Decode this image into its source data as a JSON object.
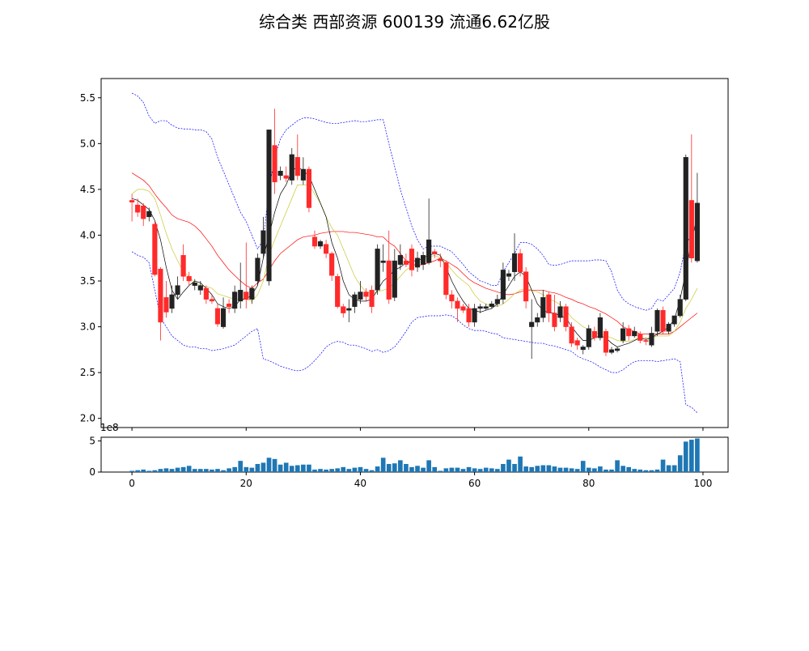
{
  "chart_data": {
    "type": "candlestick",
    "title": "综合类 西部资源 600139 流通6.62亿股",
    "up_color": "#222222",
    "down_color": "#ff2a2a",
    "x": [
      0,
      1,
      2,
      3,
      4,
      5,
      6,
      7,
      8,
      9,
      10,
      11,
      12,
      13,
      14,
      15,
      16,
      17,
      18,
      19,
      20,
      21,
      22,
      23,
      24,
      25,
      26,
      27,
      28,
      29,
      30,
      31,
      32,
      33,
      34,
      35,
      36,
      37,
      38,
      39,
      40,
      41,
      42,
      43,
      44,
      45,
      46,
      47,
      48,
      49,
      50,
      51,
      52,
      53,
      54,
      55,
      56,
      57,
      58,
      59,
      60,
      61,
      62,
      63,
      64,
      65,
      66,
      67,
      68,
      69,
      70,
      71,
      72,
      73,
      74,
      75,
      76,
      77,
      78,
      79,
      80,
      81,
      82,
      83,
      84,
      85,
      86,
      87,
      88,
      89,
      90,
      91,
      92,
      93,
      94,
      95,
      96,
      97,
      98,
      99
    ],
    "open": [
      4.38,
      4.33,
      4.32,
      4.2,
      4.12,
      3.63,
      3.32,
      3.2,
      3.35,
      3.78,
      3.55,
      3.45,
      3.4,
      3.42,
      3.3,
      3.2,
      3.0,
      3.25,
      3.2,
      3.28,
      3.38,
      3.3,
      3.5,
      3.8,
      3.5,
      4.98,
      4.65,
      4.65,
      4.6,
      4.85,
      4.6,
      4.72,
      3.98,
      3.88,
      3.9,
      3.8,
      3.55,
      3.22,
      3.18,
      3.22,
      3.3,
      3.38,
      3.4,
      3.4,
      3.7,
      3.72,
      3.32,
      3.68,
      3.72,
      3.85,
      3.65,
      3.68,
      3.7,
      3.82,
      3.74,
      3.7,
      3.35,
      3.28,
      3.22,
      3.2,
      3.05,
      3.2,
      3.2,
      3.22,
      3.25,
      3.3,
      3.55,
      3.6,
      3.8,
      3.6,
      3.0,
      3.05,
      3.1,
      3.35,
      3.15,
      3.1,
      3.22,
      3.0,
      2.85,
      2.75,
      2.78,
      2.95,
      2.88,
      2.95,
      2.72,
      2.74,
      2.85,
      2.98,
      2.9,
      2.92,
      2.85,
      2.8,
      2.95,
      3.18,
      2.95,
      3.03,
      3.12,
      3.3,
      4.38,
      3.72
    ],
    "high": [
      4.45,
      4.4,
      4.35,
      4.3,
      4.15,
      3.65,
      3.5,
      3.45,
      3.55,
      3.9,
      3.6,
      3.52,
      3.5,
      3.45,
      3.35,
      3.25,
      3.32,
      3.3,
      3.45,
      3.7,
      3.92,
      3.45,
      3.8,
      4.2,
      5.15,
      5.38,
      4.75,
      4.75,
      4.95,
      5.1,
      4.85,
      4.75,
      4.05,
      3.95,
      3.95,
      3.82,
      3.58,
      3.25,
      3.3,
      3.38,
      3.5,
      3.42,
      3.45,
      3.9,
      3.9,
      4.05,
      3.85,
      3.9,
      3.8,
      3.9,
      3.82,
      3.82,
      4.4,
      3.85,
      3.8,
      3.72,
      3.4,
      3.32,
      3.25,
      3.25,
      3.25,
      3.25,
      3.25,
      3.28,
      3.35,
      3.7,
      3.62,
      4.02,
      3.85,
      3.65,
      3.3,
      3.15,
      3.4,
      3.38,
      3.35,
      3.28,
      3.25,
      3.05,
      2.88,
      2.8,
      3.02,
      3.0,
      3.15,
      2.98,
      2.78,
      2.78,
      3.05,
      3.02,
      3.0,
      2.95,
      2.88,
      3.0,
      3.2,
      3.22,
      3.05,
      3.12,
      3.35,
      4.88,
      5.1,
      4.68
    ],
    "low": [
      4.15,
      4.2,
      4.1,
      4.15,
      3.55,
      2.85,
      3.1,
      3.15,
      3.3,
      3.5,
      3.45,
      3.4,
      3.35,
      3.25,
      3.25,
      3.0,
      2.98,
      3.15,
      3.15,
      3.2,
      3.2,
      3.25,
      3.45,
      3.75,
      3.45,
      4.45,
      4.6,
      4.58,
      4.55,
      4.6,
      4.55,
      4.25,
      3.85,
      3.85,
      3.75,
      3.5,
      3.2,
      3.1,
      3.05,
      3.15,
      3.25,
      3.28,
      3.15,
      3.35,
      3.6,
      3.25,
      3.28,
      3.62,
      3.65,
      3.55,
      3.6,
      3.62,
      3.68,
      3.75,
      3.65,
      3.3,
      3.2,
      3.05,
      3.15,
      3.0,
      3.0,
      3.15,
      3.18,
      3.2,
      3.22,
      3.25,
      3.5,
      3.5,
      3.55,
      3.2,
      2.65,
      3.0,
      3.05,
      3.05,
      2.95,
      3.05,
      2.95,
      2.78,
      2.75,
      2.7,
      2.75,
      2.85,
      2.85,
      2.68,
      2.7,
      2.72,
      2.82,
      2.85,
      2.88,
      2.82,
      2.8,
      2.78,
      2.9,
      2.92,
      2.92,
      3.0,
      3.1,
      3.28,
      3.7,
      3.7
    ],
    "close": [
      4.36,
      4.25,
      4.18,
      4.26,
      3.57,
      3.05,
      3.16,
      3.35,
      3.45,
      3.55,
      3.5,
      3.48,
      3.45,
      3.3,
      3.28,
      3.03,
      3.2,
      3.22,
      3.38,
      3.4,
      3.3,
      3.42,
      3.75,
      4.05,
      5.15,
      4.58,
      4.7,
      4.62,
      4.88,
      4.65,
      4.72,
      4.3,
      3.88,
      3.93,
      3.8,
      3.56,
      3.22,
      3.15,
      3.2,
      3.35,
      3.38,
      3.33,
      3.22,
      3.85,
      3.72,
      3.3,
      3.72,
      3.78,
      3.68,
      3.62,
      3.75,
      3.78,
      3.95,
      3.8,
      3.72,
      3.35,
      3.28,
      3.2,
      3.18,
      3.05,
      3.2,
      3.22,
      3.22,
      3.25,
      3.3,
      3.62,
      3.58,
      3.8,
      3.6,
      3.28,
      3.05,
      3.1,
      3.32,
      3.15,
      3.0,
      3.22,
      3.0,
      2.82,
      2.8,
      2.78,
      2.98,
      2.88,
      3.1,
      2.72,
      2.75,
      2.76,
      2.98,
      2.9,
      2.95,
      2.85,
      2.84,
      2.93,
      3.18,
      2.95,
      3.03,
      3.12,
      3.3,
      4.85,
      3.75,
      4.35
    ],
    "lines": [
      {
        "color": "#0000ff",
        "dashed": true,
        "values": [
          5.55,
          5.52,
          5.45,
          5.3,
          5.22,
          5.25,
          5.25,
          5.2,
          5.17,
          5.16,
          5.16,
          5.15,
          5.15,
          5.13,
          5.05,
          4.85,
          4.7,
          4.55,
          4.4,
          4.25,
          4.15,
          4.0,
          3.85,
          3.95,
          4.5,
          4.85,
          5.05,
          5.15,
          5.2,
          5.25,
          5.28,
          5.28,
          5.27,
          5.25,
          5.23,
          5.22,
          5.22,
          5.23,
          5.24,
          5.25,
          5.24,
          5.24,
          5.25,
          5.26,
          5.26,
          5.0,
          4.75,
          4.5,
          4.3,
          4.1,
          3.95,
          3.85,
          3.88,
          3.88,
          3.88,
          3.85,
          3.82,
          3.75,
          3.68,
          3.6,
          3.55,
          3.5,
          3.48,
          3.45,
          3.45,
          3.6,
          3.7,
          3.8,
          3.92,
          3.92,
          3.9,
          3.85,
          3.78,
          3.68,
          3.67,
          3.68,
          3.7,
          3.72,
          3.72,
          3.72,
          3.72,
          3.73,
          3.73,
          3.72,
          3.6,
          3.4,
          3.3,
          3.25,
          3.22,
          3.2,
          3.18,
          3.2,
          3.3,
          3.28,
          3.35,
          3.42,
          3.6,
          3.9,
          4.0,
          4.1
        ]
      },
      {
        "color": "#0000ff",
        "dashed": true,
        "values": [
          3.82,
          3.78,
          3.76,
          3.7,
          3.4,
          3.1,
          3.0,
          2.9,
          2.85,
          2.8,
          2.78,
          2.78,
          2.76,
          2.76,
          2.74,
          2.75,
          2.76,
          2.78,
          2.8,
          2.85,
          2.9,
          2.95,
          2.98,
          2.65,
          2.63,
          2.6,
          2.57,
          2.55,
          2.53,
          2.52,
          2.53,
          2.57,
          2.63,
          2.7,
          2.78,
          2.82,
          2.84,
          2.83,
          2.8,
          2.8,
          2.78,
          2.76,
          2.73,
          2.75,
          2.72,
          2.74,
          2.78,
          2.86,
          2.95,
          3.05,
          3.1,
          3.11,
          3.12,
          3.12,
          3.12,
          3.13,
          3.12,
          3.08,
          3.02,
          2.98,
          2.96,
          2.96,
          2.95,
          2.93,
          2.92,
          2.88,
          2.87,
          2.86,
          2.85,
          2.84,
          2.83,
          2.82,
          2.82,
          2.8,
          2.79,
          2.77,
          2.75,
          2.73,
          2.68,
          2.65,
          2.63,
          2.6,
          2.56,
          2.53,
          2.5,
          2.5,
          2.53,
          2.58,
          2.62,
          2.63,
          2.63,
          2.63,
          2.62,
          2.63,
          2.64,
          2.65,
          2.62,
          2.15,
          2.12,
          2.06
        ]
      },
      {
        "color": "#ff0000",
        "dashed": false,
        "values": [
          4.68,
          4.64,
          4.6,
          4.54,
          4.45,
          4.37,
          4.3,
          4.22,
          4.18,
          4.16,
          4.14,
          4.1,
          4.04,
          3.96,
          3.88,
          3.78,
          3.7,
          3.62,
          3.56,
          3.5,
          3.45,
          3.42,
          3.48,
          3.52,
          3.62,
          3.72,
          3.8,
          3.85,
          3.9,
          3.95,
          3.98,
          3.99,
          4.0,
          4.02,
          4.03,
          4.04,
          4.04,
          4.04,
          4.03,
          4.03,
          4.02,
          4.01,
          4.0,
          3.98,
          3.98,
          3.92,
          3.88,
          3.8,
          3.72,
          3.68,
          3.67,
          3.68,
          3.7,
          3.72,
          3.75,
          3.72,
          3.68,
          3.64,
          3.58,
          3.52,
          3.48,
          3.45,
          3.42,
          3.4,
          3.38,
          3.36,
          3.35,
          3.36,
          3.38,
          3.4,
          3.4,
          3.4,
          3.4,
          3.38,
          3.37,
          3.35,
          3.32,
          3.3,
          3.27,
          3.25,
          3.22,
          3.2,
          3.17,
          3.14,
          3.1,
          3.06,
          3.0,
          2.97,
          2.95,
          2.92,
          2.92,
          2.92,
          2.92,
          2.92,
          2.92,
          2.95,
          3.0,
          3.05,
          3.1,
          3.15
        ]
      },
      {
        "color": "#c8c832",
        "dashed": false,
        "values": [
          4.45,
          4.5,
          4.5,
          4.48,
          4.4,
          4.22,
          4.02,
          3.85,
          3.72,
          3.6,
          3.55,
          3.48,
          3.45,
          3.44,
          3.42,
          3.36,
          3.34,
          3.32,
          3.3,
          3.3,
          3.3,
          3.28,
          3.35,
          3.5,
          3.78,
          3.95,
          4.1,
          4.25,
          4.4,
          4.55,
          4.55,
          4.55,
          4.45,
          4.35,
          4.2,
          4.08,
          4.0,
          3.85,
          3.7,
          3.55,
          3.45,
          3.38,
          3.36,
          3.38,
          3.4,
          3.42,
          3.48,
          3.55,
          3.62,
          3.66,
          3.7,
          3.72,
          3.76,
          3.78,
          3.75,
          3.7,
          3.62,
          3.55,
          3.5,
          3.45,
          3.35,
          3.28,
          3.25,
          3.22,
          3.22,
          3.25,
          3.3,
          3.36,
          3.4,
          3.42,
          3.4,
          3.38,
          3.35,
          3.3,
          3.28,
          3.24,
          3.18,
          3.1,
          3.05,
          3.0,
          2.97,
          2.94,
          2.92,
          2.9,
          2.88,
          2.85,
          2.84,
          2.84,
          2.86,
          2.88,
          2.88,
          2.88,
          2.9,
          2.9,
          2.9,
          2.95,
          3.05,
          3.2,
          3.3,
          3.42
        ]
      },
      {
        "color": "#000000",
        "dashed": false,
        "values": [
          4.4,
          4.38,
          4.33,
          4.28,
          4.16,
          3.95,
          3.65,
          3.4,
          3.3,
          3.38,
          3.45,
          3.5,
          3.48,
          3.42,
          3.35,
          3.25,
          3.22,
          3.2,
          3.22,
          3.3,
          3.3,
          3.35,
          3.45,
          3.75,
          4.0,
          4.25,
          4.45,
          4.55,
          4.7,
          4.75,
          4.7,
          4.65,
          4.5,
          4.35,
          4.2,
          3.92,
          3.75,
          3.5,
          3.35,
          3.3,
          3.28,
          3.28,
          3.3,
          3.4,
          3.5,
          3.55,
          3.62,
          3.65,
          3.7,
          3.72,
          3.72,
          3.75,
          3.78,
          3.8,
          3.78,
          3.65,
          3.5,
          3.38,
          3.28,
          3.2,
          3.18,
          3.16,
          3.18,
          3.2,
          3.25,
          3.35,
          3.45,
          3.55,
          3.6,
          3.55,
          3.4,
          3.25,
          3.18,
          3.15,
          3.15,
          3.12,
          3.1,
          3.0,
          2.92,
          2.85,
          2.85,
          2.88,
          2.9,
          2.88,
          2.82,
          2.78,
          2.8,
          2.82,
          2.85,
          2.88,
          2.86,
          2.88,
          2.92,
          2.95,
          3.0,
          3.08,
          3.3,
          3.6,
          3.95,
          4.2
        ]
      }
    ],
    "xlim": [
      -5.4,
      104.4
    ],
    "ylim": [
      1.9,
      5.71
    ],
    "yticks": [
      {
        "value": 2,
        "label": "2.0"
      },
      2.5,
      {
        "value": 3,
        "label": "3.0"
      },
      3.5,
      {
        "value": 4,
        "label": "4.0"
      },
      4.5,
      {
        "value": 5,
        "label": "5.0"
      },
      5.5
    ],
    "xticks": [
      0,
      20,
      40,
      60,
      80,
      100
    ],
    "volume": {
      "type": "bar",
      "color": "#1f77b4",
      "offset_label": "1e8",
      "values": [
        0.2,
        0.3,
        0.4,
        0.2,
        0.3,
        0.5,
        0.6,
        0.5,
        0.7,
        0.8,
        1.0,
        0.5,
        0.5,
        0.5,
        0.4,
        0.5,
        0.3,
        0.6,
        0.8,
        1.8,
        0.8,
        0.7,
        1.3,
        1.5,
        2.3,
        2.1,
        1.2,
        1.5,
        1.0,
        1.1,
        1.2,
        1.2,
        0.4,
        0.5,
        0.4,
        0.5,
        0.6,
        0.8,
        0.5,
        0.7,
        0.8,
        0.5,
        0.3,
        0.9,
        2.3,
        1.3,
        1.4,
        1.9,
        1.3,
        0.8,
        1.0,
        0.7,
        1.9,
        0.8,
        0.2,
        0.6,
        0.7,
        0.7,
        0.5,
        0.8,
        0.6,
        0.5,
        0.7,
        0.6,
        0.5,
        1.3,
        2.0,
        1.3,
        2.5,
        0.9,
        0.8,
        1.0,
        1.1,
        1.1,
        0.9,
        0.7,
        0.7,
        0.6,
        0.5,
        1.8,
        0.7,
        0.6,
        0.9,
        0.4,
        0.4,
        1.9,
        1.0,
        0.8,
        0.5,
        0.4,
        0.3,
        0.3,
        0.4,
        2.0,
        1.1,
        1.1,
        2.7,
        4.9,
        5.2,
        5.4
      ],
      "ylim": [
        0,
        5.6
      ],
      "yticks": [
        0,
        5
      ]
    }
  }
}
